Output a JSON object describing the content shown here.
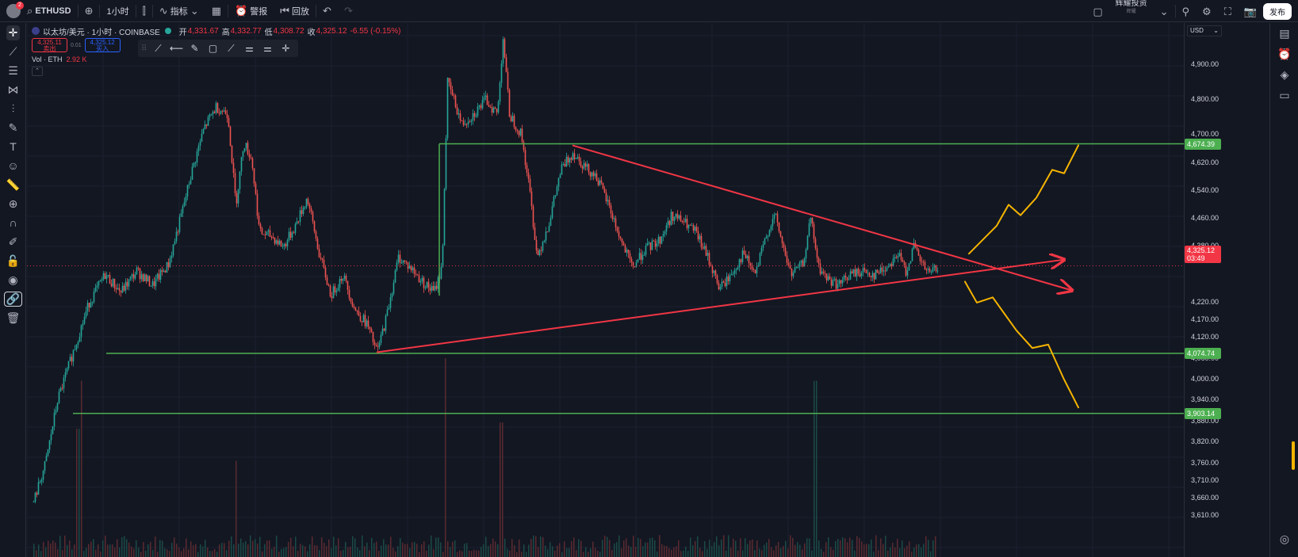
{
  "topbar": {
    "avatar_badge": "2",
    "symbol": "ETHUSD",
    "interval": "1小时",
    "indicators_label": "指标",
    "alert_label": "警报",
    "replay_label": "回放",
    "brand": "辉耀投资",
    "brand_sub": "辉耀",
    "publish_label": "发布"
  },
  "legend": {
    "title": "以太坊/美元 · 1小时 · COINBASE",
    "open_label": "开",
    "open_value": "4,331.67",
    "high_label": "高",
    "high_value": "4,332.77",
    "low_label": "低",
    "low_value": "4,308.72",
    "close_label": "收",
    "close_value": "4,325.12",
    "change": "-6.55 (-0.15%)",
    "sell_price": "4,325.11",
    "sell_label": "卖出",
    "spread": "0.01",
    "buy_price": "4,325.12",
    "buy_label": "买入",
    "vol_label": "Vol · ETH",
    "vol_value": "2.92 K"
  },
  "axis": {
    "currency": "USD",
    "ticks": [
      "4,900.00",
      "4,800.00",
      "4,700.00",
      "4,620.00",
      "4,540.00",
      "4,460.00",
      "4,380.00",
      "4,220.00",
      "4,170.00",
      "4,120.00",
      "4,060.00",
      "4,000.00",
      "3,940.00",
      "3,880.00",
      "3,820.00",
      "3,760.00",
      "3,710.00",
      "3,660.00",
      "3,610.00"
    ],
    "levels": [
      "4,674.39",
      "4,074.74",
      "3,903.14"
    ],
    "current_price": "4,325.12",
    "countdown": "03:49"
  },
  "colors": {
    "up": "#26a69a",
    "down": "#ef5350",
    "level": "#4caf50",
    "trend": "#f23645",
    "scenario": "#f5b400",
    "bg": "#131722"
  },
  "chart_data": {
    "type": "candlestick",
    "symbol": "ETHUSD",
    "interval": "1h",
    "ylim": [
      3590,
      4990
    ],
    "price_path": [
      [
        0,
        3650
      ],
      [
        15,
        3760
      ],
      [
        30,
        3940
      ],
      [
        50,
        4080
      ],
      [
        70,
        4220
      ],
      [
        90,
        4300
      ],
      [
        110,
        4250
      ],
      [
        130,
        4310
      ],
      [
        150,
        4270
      ],
      [
        170,
        4330
      ],
      [
        185,
        4460
      ],
      [
        200,
        4600
      ],
      [
        215,
        4720
      ],
      [
        230,
        4780
      ],
      [
        245,
        4760
      ],
      [
        255,
        4500
      ],
      [
        265,
        4680
      ],
      [
        275,
        4630
      ],
      [
        285,
        4420
      ],
      [
        300,
        4410
      ],
      [
        315,
        4380
      ],
      [
        330,
        4440
      ],
      [
        345,
        4520
      ],
      [
        360,
        4360
      ],
      [
        375,
        4240
      ],
      [
        390,
        4300
      ],
      [
        405,
        4200
      ],
      [
        420,
        4160
      ],
      [
        433,
        4078
      ],
      [
        445,
        4180
      ],
      [
        460,
        4350
      ],
      [
        475,
        4320
      ],
      [
        490,
        4280
      ],
      [
        505,
        4250
      ],
      [
        515,
        4320
      ],
      [
        522,
        4850
      ],
      [
        530,
        4800
      ],
      [
        540,
        4730
      ],
      [
        555,
        4760
      ],
      [
        570,
        4800
      ],
      [
        585,
        4760
      ],
      [
        592,
        4980
      ],
      [
        600,
        4760
      ],
      [
        615,
        4700
      ],
      [
        625,
        4550
      ],
      [
        635,
        4350
      ],
      [
        650,
        4450
      ],
      [
        665,
        4600
      ],
      [
        680,
        4650
      ],
      [
        695,
        4610
      ],
      [
        710,
        4580
      ],
      [
        725,
        4500
      ],
      [
        740,
        4400
      ],
      [
        755,
        4320
      ],
      [
        770,
        4370
      ],
      [
        790,
        4400
      ],
      [
        805,
        4470
      ],
      [
        820,
        4450
      ],
      [
        835,
        4420
      ],
      [
        850,
        4350
      ],
      [
        865,
        4260
      ],
      [
        880,
        4300
      ],
      [
        895,
        4360
      ],
      [
        910,
        4300
      ],
      [
        925,
        4420
      ],
      [
        935,
        4470
      ],
      [
        945,
        4380
      ],
      [
        955,
        4300
      ],
      [
        970,
        4330
      ],
      [
        980,
        4460
      ],
      [
        990,
        4320
      ],
      [
        1000,
        4290
      ],
      [
        1015,
        4270
      ],
      [
        1030,
        4300
      ],
      [
        1045,
        4310
      ],
      [
        1060,
        4300
      ],
      [
        1075,
        4320
      ],
      [
        1090,
        4360
      ],
      [
        1100,
        4310
      ],
      [
        1110,
        4380
      ],
      [
        1120,
        4330
      ],
      [
        1130,
        4300
      ],
      [
        1140,
        4325
      ]
    ],
    "volume_spikes": [
      [
        55,
        0.4
      ],
      [
        60,
        0.55
      ],
      [
        255,
        0.3
      ],
      [
        519,
        0.62
      ],
      [
        590,
        0.42
      ],
      [
        985,
        0.55
      ]
    ],
    "horizontal_levels": [
      4674.39,
      4074.74,
      3903.14
    ],
    "trendlines": [
      {
        "name": "upper",
        "from": [
          680,
          4670
        ],
        "to": [
          1310,
          4255
        ]
      },
      {
        "name": "lower",
        "from": [
          433,
          4078
        ],
        "to": [
          1300,
          4343
        ]
      }
    ],
    "scenarios": [
      {
        "name": "bullish",
        "points": [
          [
            1180,
            4360
          ],
          [
            1215,
            4440
          ],
          [
            1230,
            4500
          ],
          [
            1245,
            4470
          ],
          [
            1265,
            4520
          ],
          [
            1285,
            4600
          ],
          [
            1300,
            4590
          ],
          [
            1318,
            4670
          ]
        ]
      },
      {
        "name": "bearish",
        "points": [
          [
            1175,
            4280
          ],
          [
            1190,
            4220
          ],
          [
            1210,
            4235
          ],
          [
            1240,
            4140
          ],
          [
            1260,
            4090
          ],
          [
            1280,
            4100
          ],
          [
            1300,
            4000
          ],
          [
            1318,
            3920
          ]
        ]
      }
    ]
  }
}
